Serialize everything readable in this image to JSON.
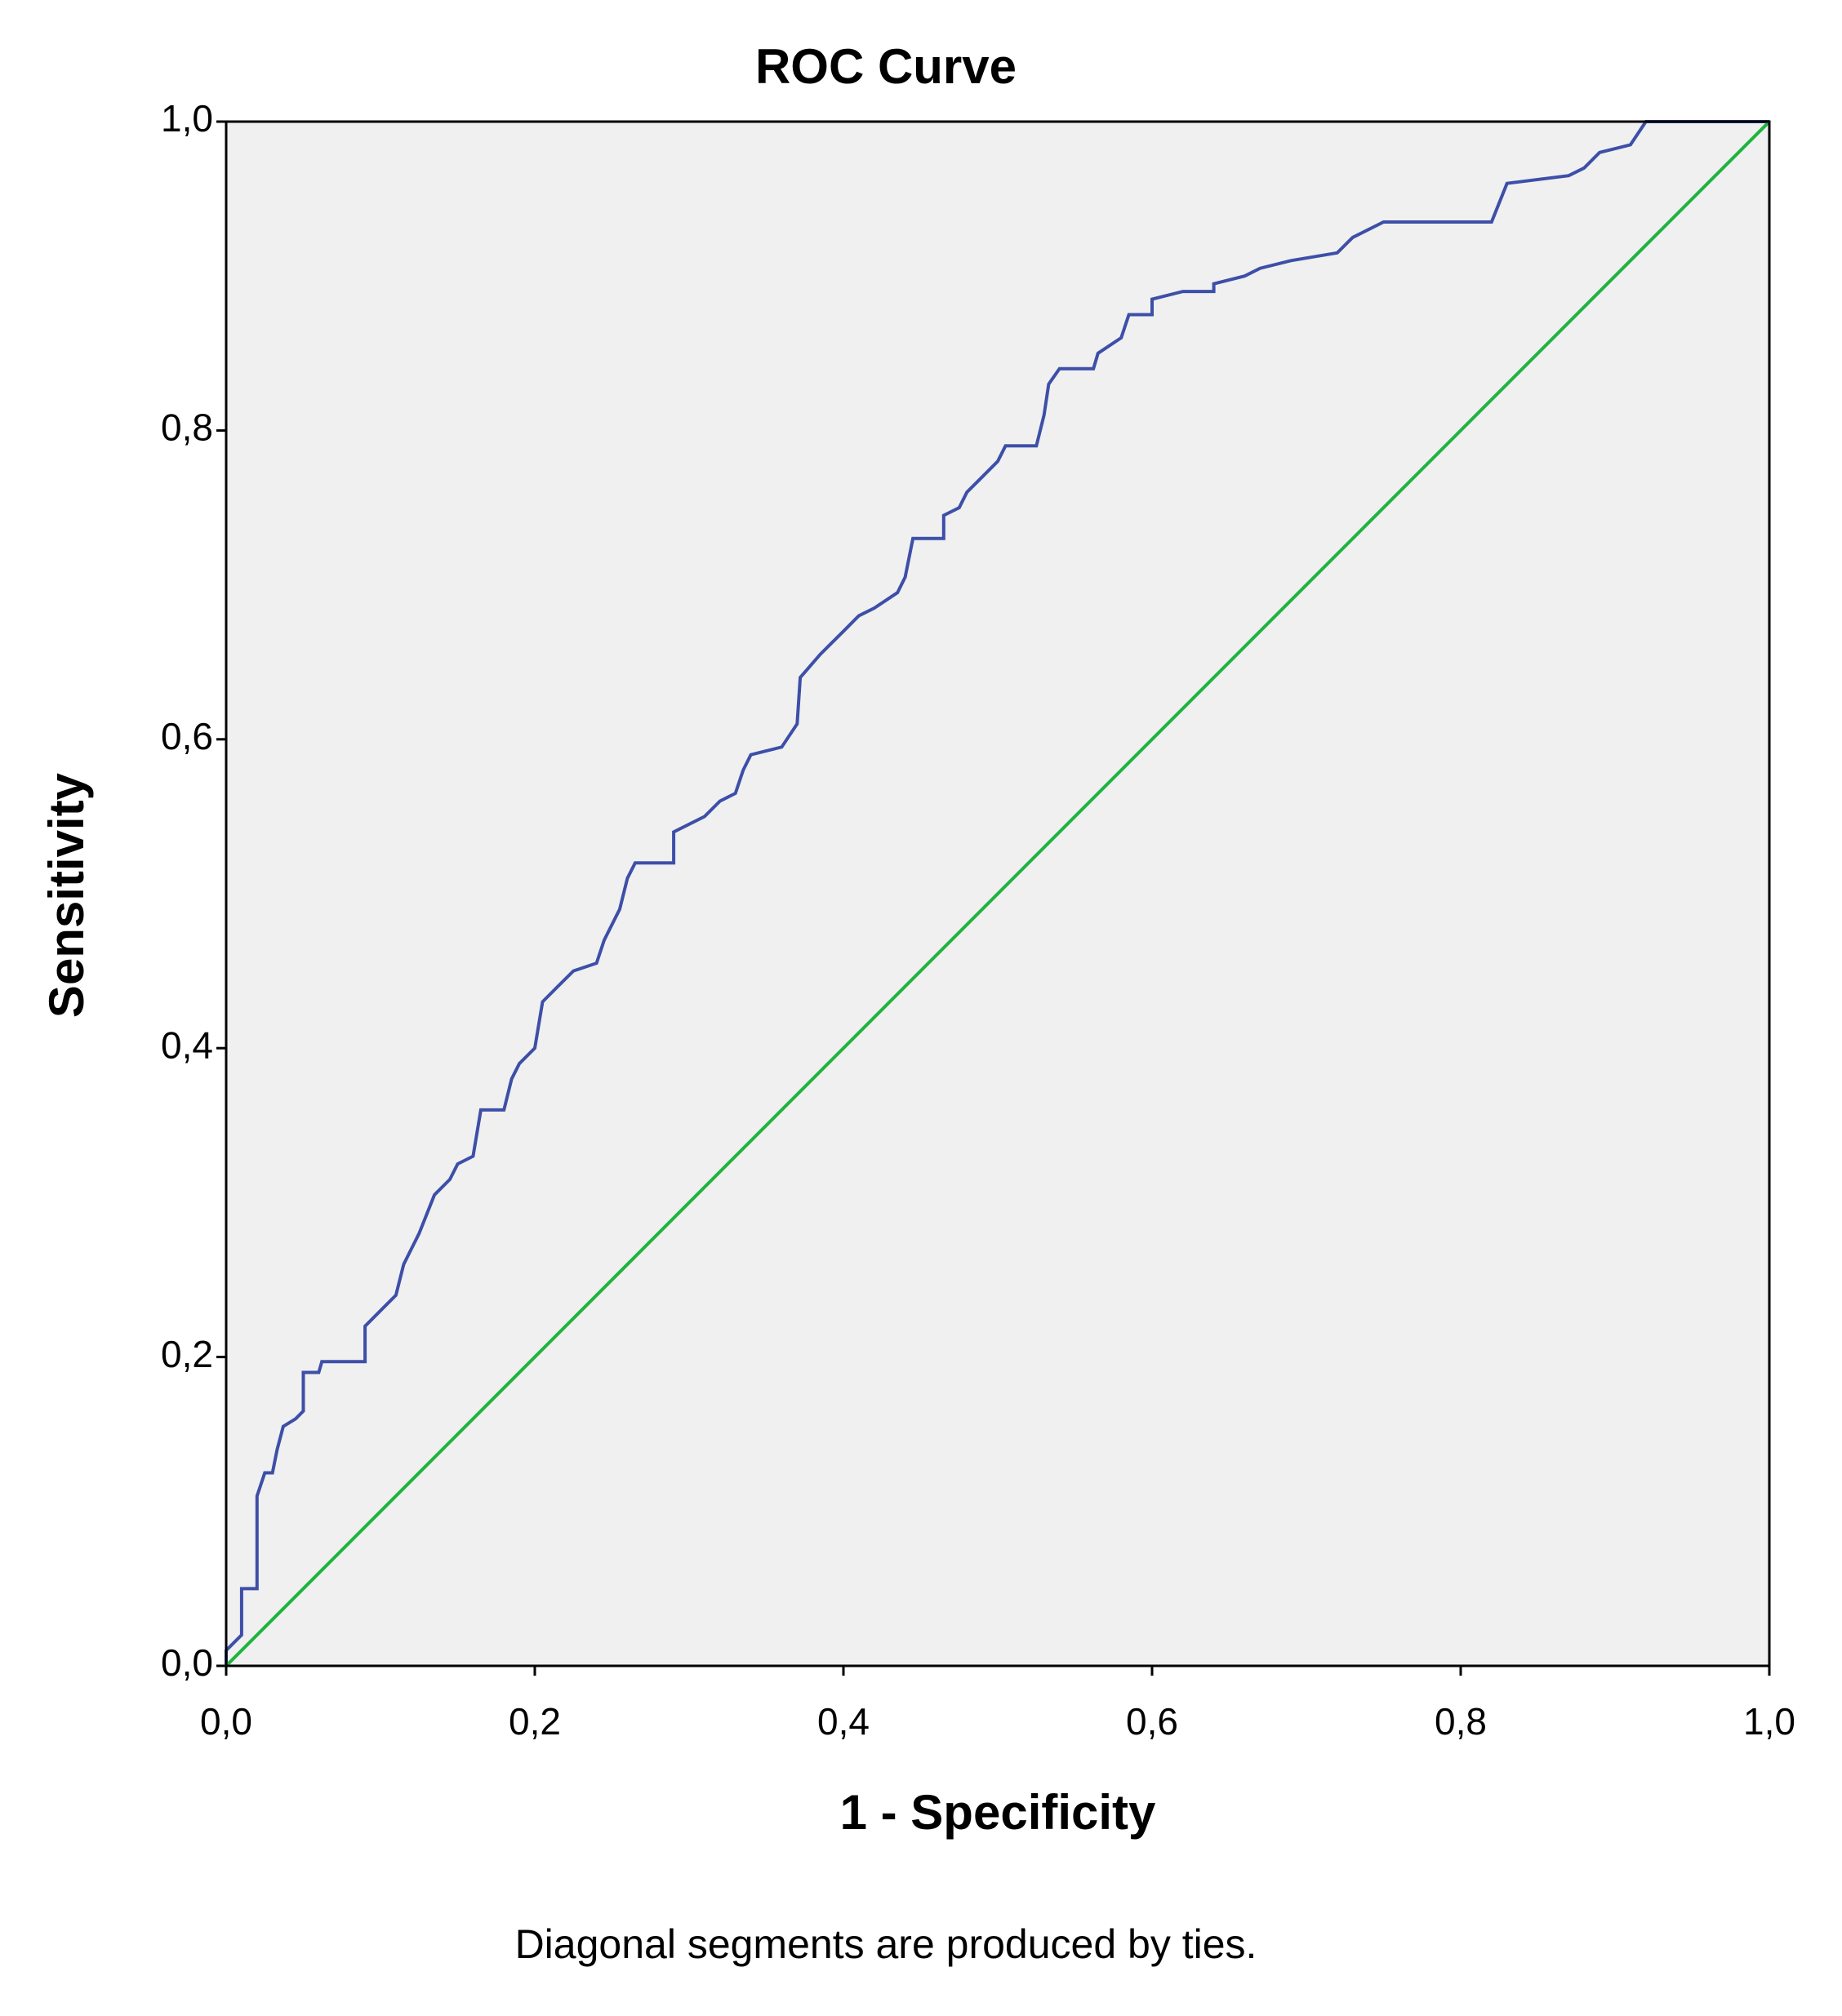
{
  "chart_data": {
    "type": "line",
    "title": "ROC Curve",
    "x_label": "1 - Specificity",
    "y_label": "Sensitivity",
    "footnote": "Diagonal segments are produced by ties.",
    "xlim": [
      0,
      1
    ],
    "ylim": [
      0,
      1
    ],
    "xticks": [
      {
        "value": 0,
        "label": "0,0"
      },
      {
        "value": 0.2,
        "label": "0,2"
      },
      {
        "value": 0.4,
        "label": "0,4"
      },
      {
        "value": 0.6,
        "label": "0,6"
      },
      {
        "value": 0.8,
        "label": "0,8"
      },
      {
        "value": 1,
        "label": "1,0"
      }
    ],
    "yticks": [
      {
        "value": 0,
        "label": "0,0"
      },
      {
        "value": 0.2,
        "label": "0,2"
      },
      {
        "value": 0.4,
        "label": "0,4"
      },
      {
        "value": 0.6,
        "label": "0,6"
      },
      {
        "value": 0.8,
        "label": "0,8"
      },
      {
        "value": 1,
        "label": "1,0"
      }
    ],
    "background": "#f0f0f0",
    "series": [
      {
        "color": "#3d4fa8",
        "x": [
          0,
          0,
          0.01,
          0.01,
          0.02,
          0.02,
          0.025,
          0.03,
          0.033,
          0.037,
          0.045,
          0.05,
          0.05,
          0.06,
          0.062,
          0.09,
          0.09,
          0.1,
          0.11,
          0.115,
          0.125,
          0.135,
          0.145,
          0.15,
          0.16,
          0.165,
          0.18,
          0.185,
          0.19,
          0.2,
          0.205,
          0.215,
          0.225,
          0.24,
          0.245,
          0.255,
          0.26,
          0.265,
          0.29,
          0.29,
          0.31,
          0.32,
          0.33,
          0.335,
          0.34,
          0.36,
          0.37,
          0.372,
          0.385,
          0.4,
          0.41,
          0.42,
          0.435,
          0.44,
          0.445,
          0.465,
          0.465,
          0.475,
          0.48,
          0.49,
          0.5,
          0.505,
          0.525,
          0.53,
          0.533,
          0.54,
          0.562,
          0.565,
          0.58,
          0.585,
          0.6,
          0.6,
          0.62,
          0.64,
          0.64,
          0.66,
          0.67,
          0.69,
          0.72,
          0.73,
          0.75,
          0.82,
          0.83,
          0.87,
          0.88,
          0.89,
          0.91,
          0.92,
          1
        ],
        "values": [
          0,
          0.01,
          0.02,
          0.05,
          0.05,
          0.11,
          0.125,
          0.125,
          0.14,
          0.155,
          0.16,
          0.165,
          0.19,
          0.19,
          0.197,
          0.197,
          0.22,
          0.23,
          0.24,
          0.26,
          0.28,
          0.305,
          0.315,
          0.325,
          0.33,
          0.36,
          0.36,
          0.38,
          0.39,
          0.4,
          0.43,
          0.44,
          0.45,
          0.455,
          0.47,
          0.49,
          0.51,
          0.52,
          0.52,
          0.54,
          0.55,
          0.56,
          0.565,
          0.58,
          0.59,
          0.595,
          0.61,
          0.64,
          0.655,
          0.67,
          0.68,
          0.685,
          0.695,
          0.705,
          0.73,
          0.73,
          0.745,
          0.75,
          0.76,
          0.77,
          0.78,
          0.79,
          0.79,
          0.81,
          0.83,
          0.84,
          0.84,
          0.85,
          0.86,
          0.875,
          0.875,
          0.885,
          0.89,
          0.89,
          0.895,
          0.9,
          0.905,
          0.91,
          0.915,
          0.925,
          0.935,
          0.935,
          0.96,
          0.965,
          0.97,
          0.98,
          0.985,
          1,
          1
        ]
      },
      {
        "color": "#1fb33f",
        "x": [
          0,
          1
        ],
        "values": [
          0,
          1
        ]
      }
    ]
  }
}
